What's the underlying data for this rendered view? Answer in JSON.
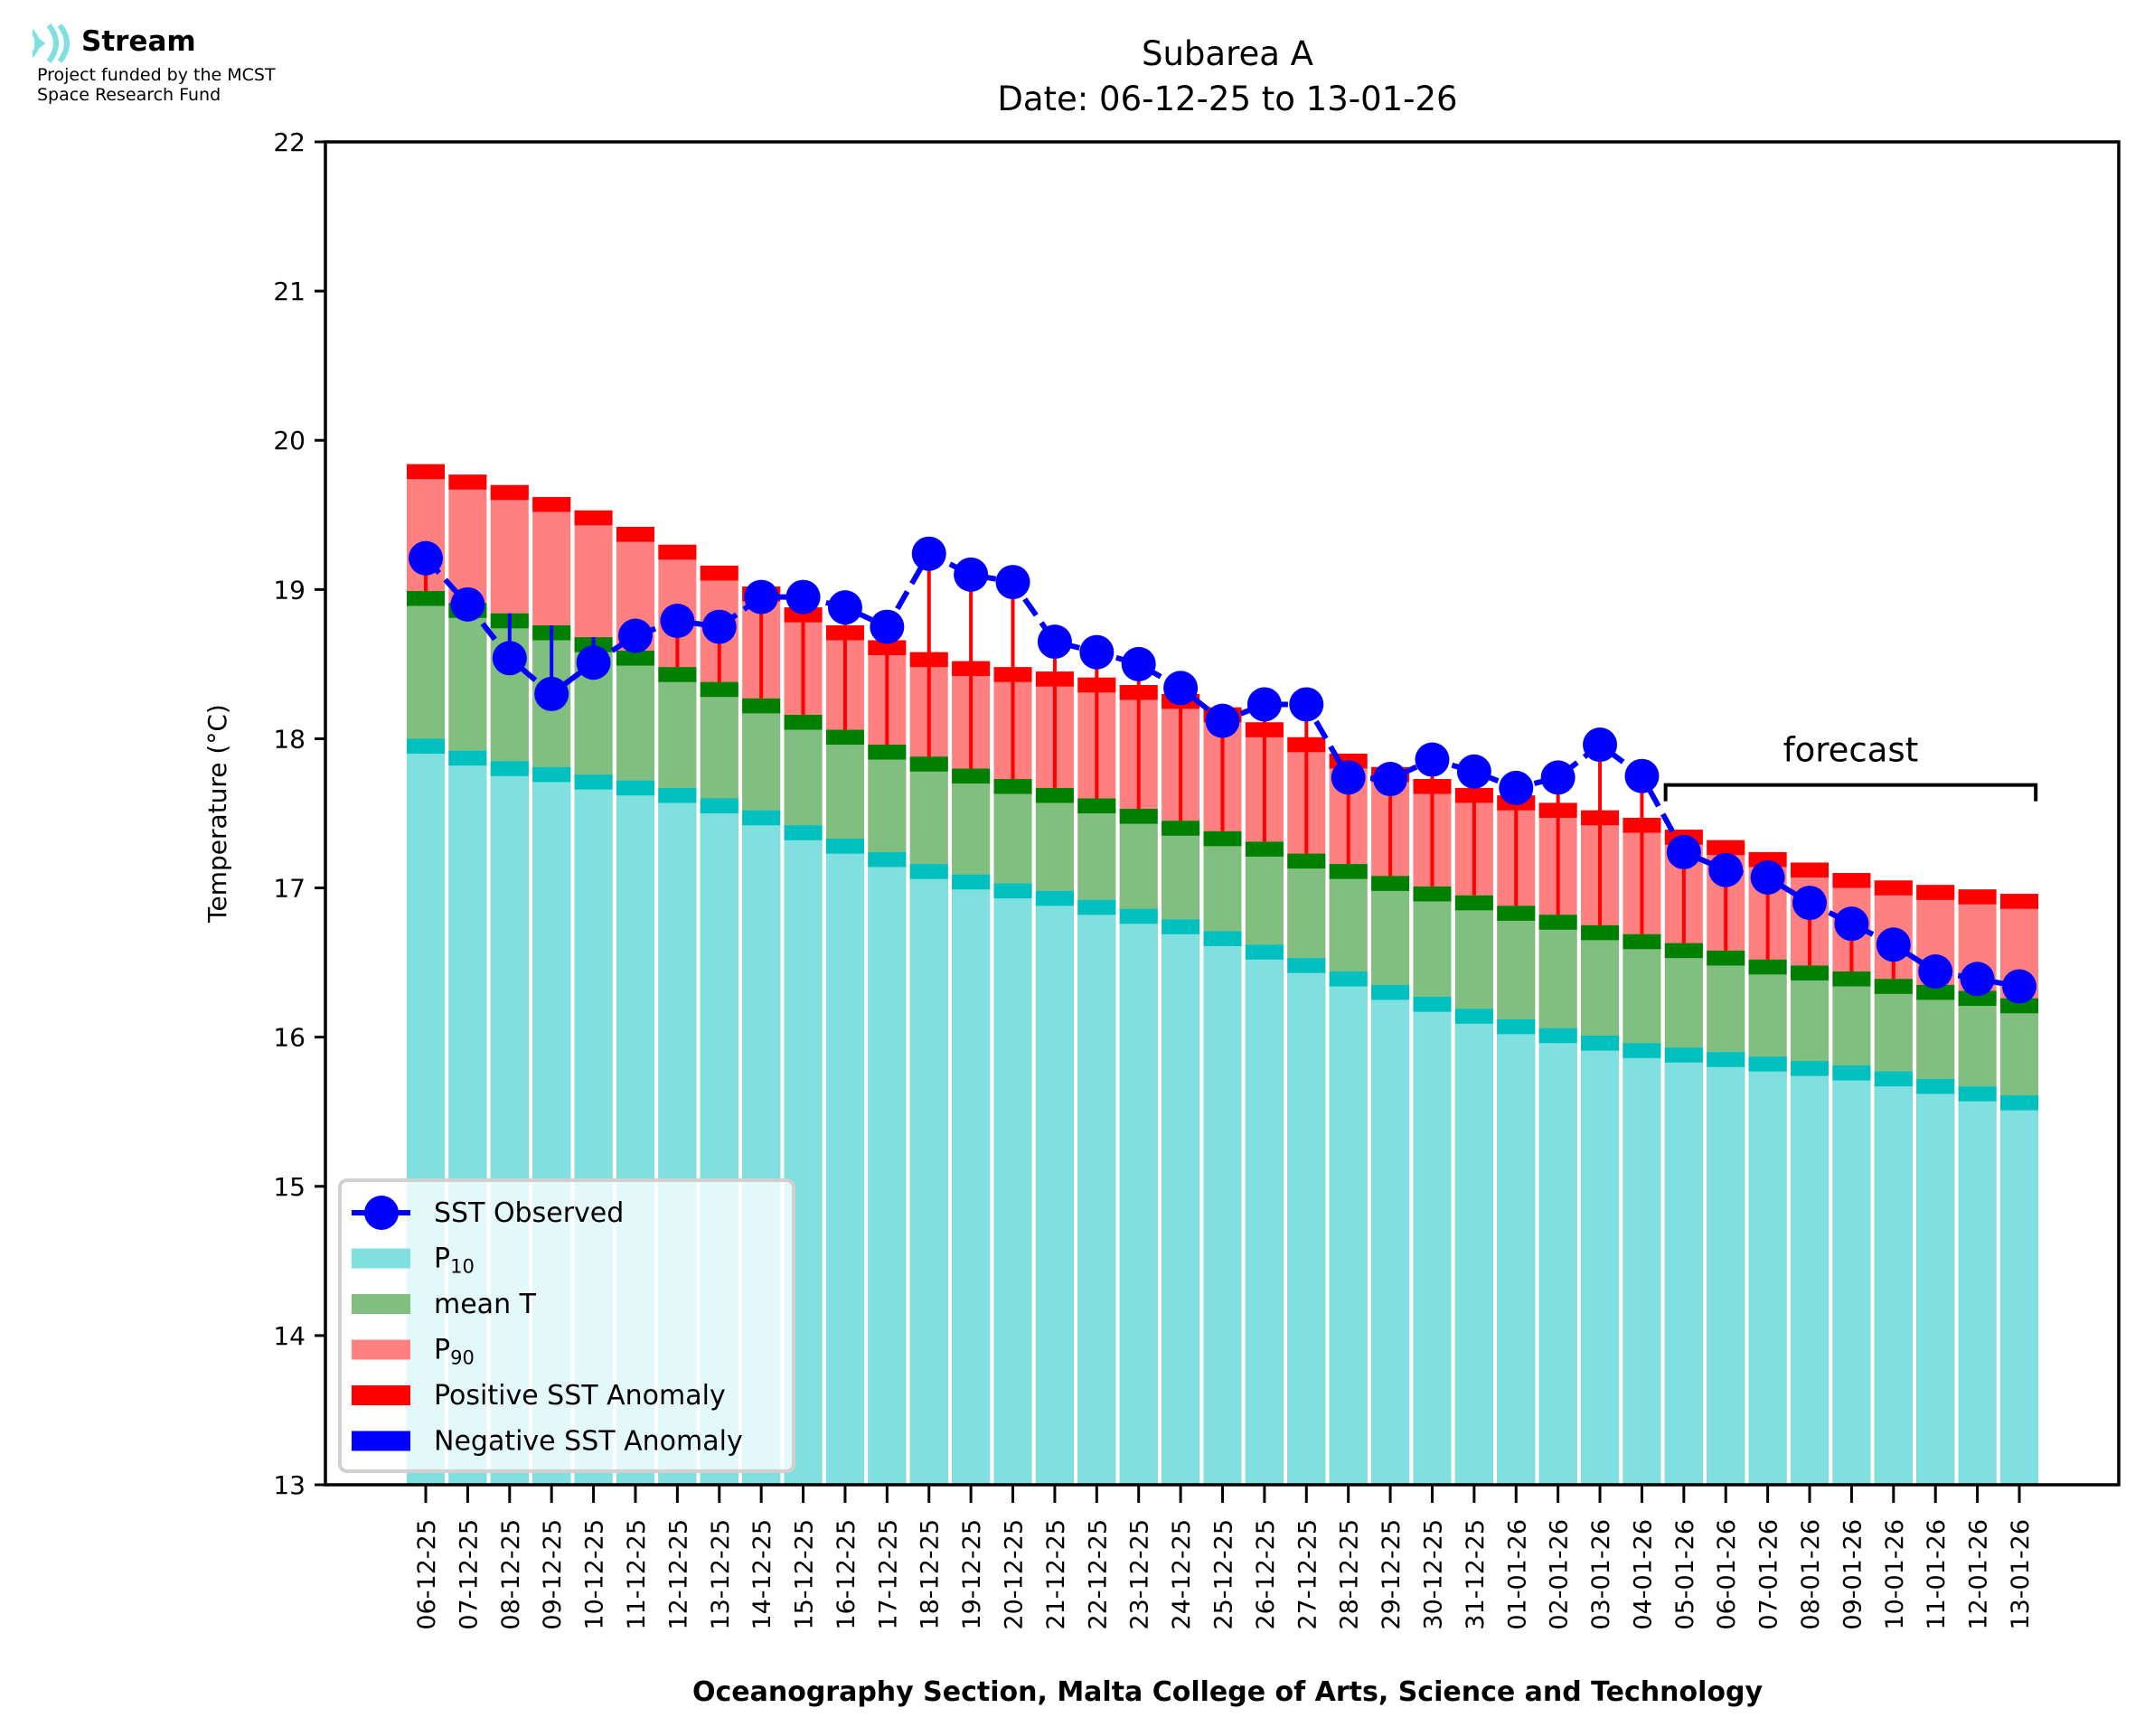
{
  "logo": {
    "icon": "stream-waves-icon",
    "brand": "Stream",
    "funding_line1": "Project funded by the MCST",
    "funding_line2": "Space Research Fund"
  },
  "colors": {
    "p10": "#80dfdf",
    "p10_edge": "#00bfbf",
    "mean": "#80bf80",
    "mean_edge": "#008000",
    "p90": "#ff8080",
    "p90_edge": "#ff0000",
    "sst": "#0000ff",
    "pos_anomaly": "#ff0000",
    "neg_anomaly": "#0000ff"
  },
  "chart_data": {
    "type": "bar",
    "title": "Subarea A",
    "subtitle": "Date: 06-12-25 to 13-01-26",
    "xlabel": "Oceanography Section, Malta College of Arts, Science and Technology",
    "ylabel": "Temperature (°C)",
    "ylim": [
      13,
      22
    ],
    "yticks": [
      "13",
      "14",
      "15",
      "16",
      "17",
      "18",
      "19",
      "20",
      "21",
      "22"
    ],
    "grid": false,
    "legend_position": "bottom-left",
    "categories": [
      "06-12-25",
      "07-12-25",
      "08-12-25",
      "09-12-25",
      "10-12-25",
      "11-12-25",
      "12-12-25",
      "13-12-25",
      "14-12-25",
      "15-12-25",
      "16-12-25",
      "17-12-25",
      "18-12-25",
      "19-12-25",
      "20-12-25",
      "21-12-25",
      "22-12-25",
      "23-12-25",
      "24-12-25",
      "25-12-25",
      "26-12-25",
      "27-12-25",
      "28-12-25",
      "29-12-25",
      "30-12-25",
      "31-12-25",
      "01-01-26",
      "02-01-26",
      "03-01-26",
      "04-01-26",
      "05-01-26",
      "06-01-26",
      "07-01-26",
      "08-01-26",
      "09-01-26",
      "10-01-26",
      "11-01-26",
      "12-01-26",
      "13-01-26"
    ],
    "series": [
      {
        "name": "P10",
        "label_main": "P",
        "label_sub": "10",
        "type": "bar",
        "values": [
          18.0,
          17.92,
          17.85,
          17.81,
          17.76,
          17.72,
          17.67,
          17.6,
          17.52,
          17.42,
          17.33,
          17.24,
          17.16,
          17.09,
          17.03,
          16.98,
          16.92,
          16.86,
          16.79,
          16.71,
          16.62,
          16.53,
          16.44,
          16.35,
          16.27,
          16.19,
          16.12,
          16.06,
          16.01,
          15.96,
          15.93,
          15.9,
          15.87,
          15.84,
          15.81,
          15.77,
          15.72,
          15.67,
          15.61
        ]
      },
      {
        "name": "mean T",
        "label_main": "mean T",
        "label_sub": "",
        "type": "bar",
        "values": [
          18.99,
          18.91,
          18.84,
          18.76,
          18.68,
          18.59,
          18.48,
          18.38,
          18.27,
          18.16,
          18.06,
          17.96,
          17.88,
          17.8,
          17.73,
          17.67,
          17.6,
          17.53,
          17.45,
          17.38,
          17.31,
          17.23,
          17.16,
          17.08,
          17.01,
          16.95,
          16.88,
          16.82,
          16.75,
          16.69,
          16.63,
          16.58,
          16.52,
          16.48,
          16.44,
          16.39,
          16.35,
          16.31,
          16.26
        ]
      },
      {
        "name": "P90",
        "label_main": "P",
        "label_sub": "90",
        "type": "bar",
        "values": [
          19.84,
          19.77,
          19.7,
          19.62,
          19.53,
          19.42,
          19.3,
          19.16,
          19.02,
          18.88,
          18.76,
          18.66,
          18.58,
          18.52,
          18.48,
          18.45,
          18.41,
          18.36,
          18.3,
          18.21,
          18.11,
          18.01,
          17.9,
          17.81,
          17.73,
          17.67,
          17.62,
          17.57,
          17.52,
          17.47,
          17.39,
          17.32,
          17.24,
          17.17,
          17.1,
          17.05,
          17.02,
          16.99,
          16.96
        ]
      },
      {
        "name": "SST Observed",
        "label_main": "SST Observed",
        "label_sub": "",
        "type": "line",
        "values": [
          19.21,
          18.9,
          18.54,
          18.3,
          18.51,
          18.69,
          18.79,
          18.75,
          18.95,
          18.95,
          18.88,
          18.75,
          19.24,
          19.1,
          19.05,
          18.65,
          18.58,
          18.5,
          18.34,
          18.12,
          18.23,
          18.23,
          17.74,
          17.73,
          17.86,
          17.78,
          17.67,
          17.74,
          17.96,
          17.75,
          17.24,
          17.12,
          17.07,
          16.9,
          16.76,
          16.62,
          16.44,
          16.39,
          16.34
        ]
      }
    ],
    "anomaly_legend": [
      {
        "name": "Positive SST Anomaly",
        "color": "#ff0000"
      },
      {
        "name": "Negative SST Anomaly",
        "color": "#0000ff"
      }
    ],
    "annotation": {
      "text": "forecast",
      "from_category": "05-01-26",
      "to_category": "13-01-26",
      "y": 17.69
    }
  }
}
